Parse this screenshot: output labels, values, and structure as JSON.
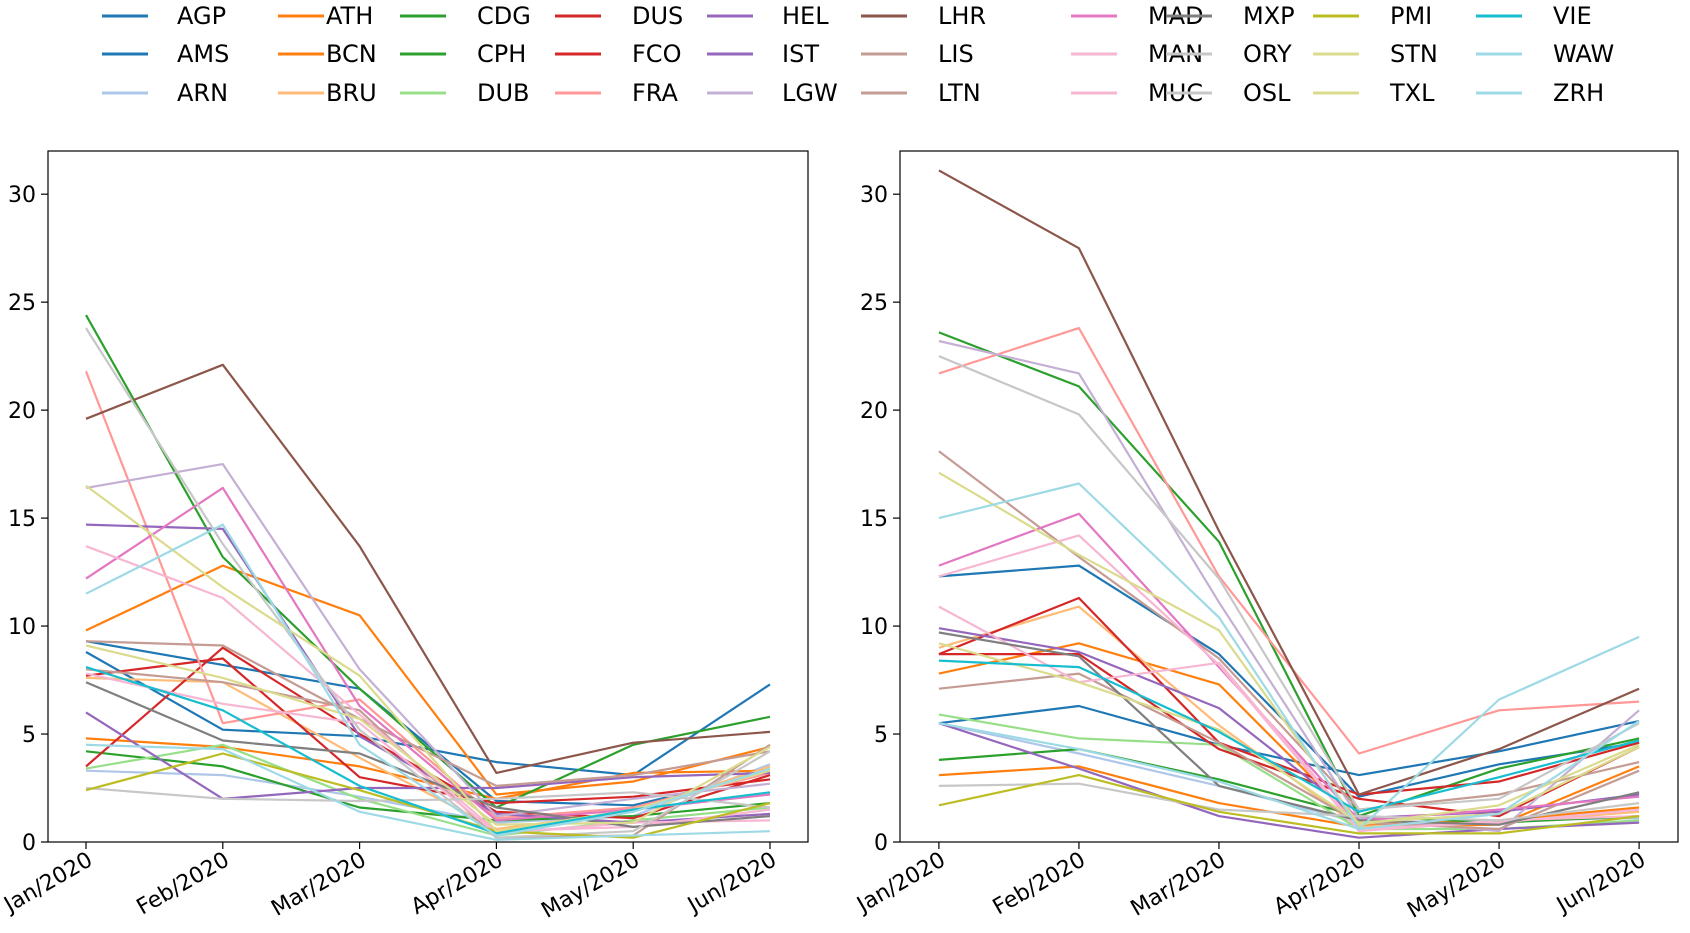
{
  "chart_data": [
    {
      "type": "line",
      "categories": [
        "Jan/2020",
        "Feb/2020",
        "Mar/2020",
        "Apr/2020",
        "May/2020",
        "Jun/2020"
      ],
      "ylim": [
        0,
        32
      ],
      "yticks": [
        0,
        5,
        10,
        15,
        20,
        25,
        30
      ],
      "series": [
        {
          "name": "AGP",
          "values": [
            8.8,
            5.2,
            4.9,
            3.7,
            3.1,
            7.3
          ]
        },
        {
          "name": "AMS",
          "values": [
            9.3,
            8.2,
            7.1,
            1.9,
            1.7,
            3.2
          ]
        },
        {
          "name": "ARN",
          "values": [
            3.3,
            3.1,
            2.1,
            0.9,
            1.2,
            3.6
          ]
        },
        {
          "name": "ATH",
          "values": [
            4.8,
            4.4,
            3.5,
            2.0,
            3.2,
            3.3
          ]
        },
        {
          "name": "BCN",
          "values": [
            9.8,
            12.8,
            10.5,
            2.2,
            2.8,
            4.4
          ]
        },
        {
          "name": "BRU",
          "values": [
            7.6,
            7.4,
            3.9,
            0.6,
            1.4,
            3.5
          ]
        },
        {
          "name": "CDG",
          "values": [
            24.4,
            13.2,
            7.1,
            1.6,
            4.5,
            5.8
          ]
        },
        {
          "name": "CPH",
          "values": [
            4.2,
            3.5,
            1.6,
            1.0,
            1.2,
            1.8
          ]
        },
        {
          "name": "DUB",
          "values": [
            3.4,
            4.5,
            2.0,
            0.3,
            1.0,
            1.6
          ]
        },
        {
          "name": "DUS",
          "values": [
            3.5,
            9.0,
            5.0,
            1.4,
            1.1,
            3.1
          ]
        },
        {
          "name": "FCO",
          "values": [
            7.7,
            8.5,
            3.0,
            1.8,
            2.1,
            2.9
          ]
        },
        {
          "name": "FRA",
          "values": [
            21.8,
            5.5,
            6.6,
            1.1,
            1.6,
            3.2
          ]
        },
        {
          "name": "HEL",
          "values": [
            14.7,
            14.5,
            4.9,
            1.3,
            0.9,
            1.3
          ]
        },
        {
          "name": "IST",
          "values": [
            6.0,
            2.0,
            2.5,
            2.5,
            3.0,
            3.2
          ]
        },
        {
          "name": "LGW",
          "values": [
            16.4,
            17.5,
            8.0,
            1.2,
            2.0,
            2.7
          ]
        },
        {
          "name": "LHR",
          "values": [
            19.6,
            22.1,
            13.7,
            3.2,
            4.6,
            5.1
          ]
        },
        {
          "name": "LIS",
          "values": [
            9.3,
            9.1,
            5.7,
            2.6,
            3.1,
            4.2
          ]
        },
        {
          "name": "LTN",
          "values": [
            8.0,
            7.4,
            6.1,
            0.2,
            0.3,
            4.5
          ]
        },
        {
          "name": "MAD",
          "values": [
            12.2,
            16.4,
            6.3,
            1.0,
            1.5,
            2.2
          ]
        },
        {
          "name": "MAN",
          "values": [
            7.8,
            6.4,
            5.5,
            0.4,
            0.9,
            1.0
          ]
        },
        {
          "name": "MUC",
          "values": [
            13.7,
            11.3,
            5.9,
            0.5,
            0.7,
            1.5
          ]
        },
        {
          "name": "MXP",
          "values": [
            7.4,
            4.7,
            4.1,
            1.6,
            0.7,
            1.2
          ]
        },
        {
          "name": "ORY",
          "values": [
            23.8,
            13.8,
            5.2,
            0.2,
            0.5,
            4.2
          ]
        },
        {
          "name": "OSL",
          "values": [
            2.5,
            2.0,
            1.9,
            2.0,
            2.3,
            1.6
          ]
        },
        {
          "name": "PMI",
          "values": [
            2.4,
            4.1,
            2.4,
            0.5,
            0.2,
            1.8
          ]
        },
        {
          "name": "STN",
          "values": [
            9.1,
            7.6,
            5.7,
            0.8,
            0.9,
            4.4
          ]
        },
        {
          "name": "TXL",
          "values": [
            16.5,
            11.8,
            7.7,
            0.5,
            1.5,
            3.3
          ]
        },
        {
          "name": "VIE",
          "values": [
            8.1,
            6.1,
            2.6,
            0.4,
            1.5,
            2.3
          ]
        },
        {
          "name": "WAW",
          "values": [
            4.5,
            4.3,
            1.4,
            0.1,
            0.3,
            0.5
          ]
        },
        {
          "name": "ZRH",
          "values": [
            11.5,
            14.7,
            4.5,
            0.3,
            1.4,
            3.4
          ]
        }
      ]
    },
    {
      "type": "line",
      "categories": [
        "Jan/2020",
        "Feb/2020",
        "Mar/2020",
        "Apr/2020",
        "May/2020",
        "Jun/2020"
      ],
      "ylim": [
        0,
        32
      ],
      "yticks": [
        0,
        5,
        10,
        15,
        20,
        25,
        30
      ],
      "series": [
        {
          "name": "AGP",
          "values": [
            5.5,
            6.3,
            4.5,
            3.1,
            4.2,
            5.6
          ]
        },
        {
          "name": "AMS",
          "values": [
            12.3,
            12.8,
            8.7,
            2.1,
            3.6,
            4.6
          ]
        },
        {
          "name": "ARN",
          "values": [
            5.5,
            4.1,
            2.6,
            0.9,
            1.0,
            1.1
          ]
        },
        {
          "name": "ATH",
          "values": [
            3.1,
            3.5,
            1.8,
            0.7,
            0.8,
            3.5
          ]
        },
        {
          "name": "BCN",
          "values": [
            7.8,
            9.2,
            7.3,
            0.8,
            1.0,
            1.6
          ]
        },
        {
          "name": "BRU",
          "values": [
            9.0,
            10.9,
            5.4,
            0.7,
            0.9,
            1.4
          ]
        },
        {
          "name": "CDG",
          "values": [
            23.6,
            21.1,
            13.9,
            1.2,
            3.4,
            4.8
          ]
        },
        {
          "name": "CPH",
          "values": [
            3.8,
            4.3,
            2.9,
            1.2,
            0.9,
            1.2
          ]
        },
        {
          "name": "DUB",
          "values": [
            5.9,
            4.8,
            4.5,
            0.6,
            0.6,
            1.0
          ]
        },
        {
          "name": "DUS",
          "values": [
            8.7,
            11.3,
            4.6,
            2.2,
            2.8,
            4.6
          ]
        },
        {
          "name": "FCO",
          "values": [
            8.7,
            8.7,
            4.3,
            2.0,
            1.2,
            4.4
          ]
        },
        {
          "name": "FRA",
          "values": [
            21.7,
            23.8,
            12.3,
            4.1,
            6.1,
            6.5
          ]
        },
        {
          "name": "HEL",
          "values": [
            9.9,
            8.8,
            6.2,
            1.1,
            1.4,
            2.2
          ]
        },
        {
          "name": "IST",
          "values": [
            5.5,
            3.4,
            1.2,
            0.2,
            0.6,
            0.9
          ]
        },
        {
          "name": "LGW",
          "values": [
            23.2,
            21.7,
            11.1,
            1.1,
            0.5,
            6.1
          ]
        },
        {
          "name": "LHR",
          "values": [
            31.1,
            27.5,
            14.4,
            2.2,
            4.3,
            7.1
          ]
        },
        {
          "name": "LIS",
          "values": [
            18.1,
            13.2,
            8.5,
            1.5,
            2.2,
            3.7
          ]
        },
        {
          "name": "LTN",
          "values": [
            7.1,
            7.8,
            4.6,
            0.9,
            0.6,
            3.3
          ]
        },
        {
          "name": "MAD",
          "values": [
            12.8,
            15.2,
            8.1,
            1.0,
            1.5,
            2.1
          ]
        },
        {
          "name": "MAN",
          "values": [
            12.3,
            14.2,
            8.2,
            0.5,
            1.0,
            1.2
          ]
        },
        {
          "name": "MUC",
          "values": [
            10.9,
            7.4,
            8.3,
            0.6,
            0.9,
            1.5
          ]
        },
        {
          "name": "MXP",
          "values": [
            9.7,
            8.6,
            2.6,
            1.0,
            0.8,
            2.3
          ]
        },
        {
          "name": "ORY",
          "values": [
            22.5,
            19.8,
            12.2,
            1.5,
            2.0,
            5.5
          ]
        },
        {
          "name": "OSL",
          "values": [
            2.6,
            2.7,
            1.5,
            1.2,
            1.0,
            1.8
          ]
        },
        {
          "name": "PMI",
          "values": [
            1.7,
            3.1,
            1.4,
            0.4,
            0.4,
            1.2
          ]
        },
        {
          "name": "STN",
          "values": [
            9.2,
            7.4,
            5.2,
            0.9,
            1.3,
            4.4
          ]
        },
        {
          "name": "TXL",
          "values": [
            17.1,
            13.3,
            9.8,
            0.8,
            1.7,
            4.5
          ]
        },
        {
          "name": "VIE",
          "values": [
            8.4,
            8.1,
            5.1,
            1.4,
            3.0,
            4.7
          ]
        },
        {
          "name": "WAW",
          "values": [
            5.5,
            4.3,
            2.8,
            0.6,
            6.6,
            9.5
          ]
        },
        {
          "name": "ZRH",
          "values": [
            15.0,
            16.6,
            10.4,
            0.6,
            1.3,
            5.6
          ]
        }
      ]
    }
  ],
  "colors": {
    "AGP": "#1f77b4",
    "AMS": "#1f77b4",
    "ARN": "#aec7e8",
    "ATH": "#ff7f0e",
    "BCN": "#ff7f0e",
    "BRU": "#ffbb78",
    "CDG": "#2ca02c",
    "CPH": "#2ca02c",
    "DUB": "#98df8a",
    "DUS": "#d62728",
    "FCO": "#d62728",
    "FRA": "#ff9896",
    "HEL": "#9467bd",
    "IST": "#9467bd",
    "LGW": "#c5b0d5",
    "LHR": "#8c564b",
    "LIS": "#c49c94",
    "LTN": "#c49c94",
    "MAD": "#e377c2",
    "MAN": "#f7b6d2",
    "MUC": "#f7b6d2",
    "MXP": "#7f7f7f",
    "ORY": "#c7c7c7",
    "OSL": "#c7c7c7",
    "PMI": "#bcbd22",
    "STN": "#dbdb8d",
    "TXL": "#dbdb8d",
    "VIE": "#17becf",
    "WAW": "#9edae5",
    "ZRH": "#9edae5"
  },
  "legend": [
    "AGP",
    "AMS",
    "ARN",
    "ATH",
    "BCN",
    "BRU",
    "CDG",
    "CPH",
    "DUB",
    "DUS",
    "FCO",
    "FRA",
    "HEL",
    "IST",
    "LGW",
    "LHR",
    "LIS",
    "LTN",
    "MAD",
    "MAN",
    "MUC",
    "MXP",
    "ORY",
    "OSL",
    "PMI",
    "STN",
    "TXL",
    "VIE",
    "WAW",
    "ZRH"
  ]
}
